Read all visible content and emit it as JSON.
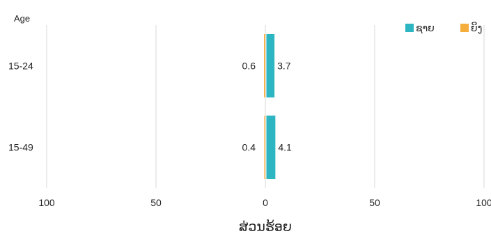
{
  "chart_data": {
    "type": "bar",
    "orientation": "horizontal",
    "layout": "diverging",
    "title": "",
    "corner_label": "Age",
    "xlabel": "ສ່ວນຮ້ອຍ",
    "categories": [
      "15-24",
      "15-49"
    ],
    "series": [
      {
        "name": "ຊາຍ",
        "color": "#2eb5c2",
        "side": "right",
        "values": [
          3.7,
          4.1
        ]
      },
      {
        "name": "ຍິງ",
        "color": "#f5ad3c",
        "side": "left",
        "values": [
          0.6,
          0.4
        ]
      }
    ],
    "xlim": [
      -100,
      100
    ],
    "x_ticks": [
      {
        "value": -100,
        "label": "100"
      },
      {
        "value": -50,
        "label": "50"
      },
      {
        "value": 0,
        "label": "0"
      },
      {
        "value": 50,
        "label": "50"
      },
      {
        "value": 100,
        "label": "100"
      }
    ],
    "grid": true,
    "legend_position": "top-right"
  }
}
